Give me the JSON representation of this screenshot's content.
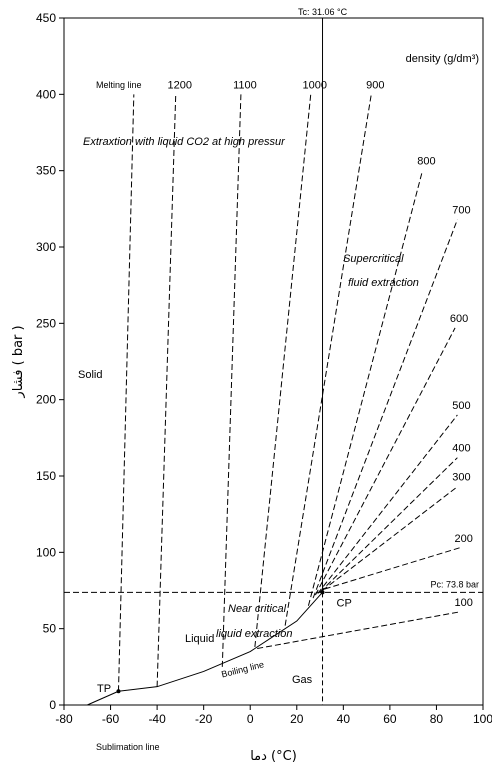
{
  "chart_data": {
    "type": "line",
    "title": "",
    "xlabel": "دما (°C)",
    "ylabel": "فشار ( bar )",
    "xlim": [
      -80,
      100
    ],
    "ylim": [
      0,
      450
    ],
    "x_ticks": [
      -80,
      -60,
      -40,
      -20,
      0,
      20,
      40,
      60,
      80,
      100
    ],
    "y_ticks": [
      0,
      50,
      100,
      150,
      200,
      250,
      300,
      350,
      400,
      450
    ],
    "legend_title": "density (g/dm³)",
    "critical_temperature_label": "Tc: 31.06 °C",
    "critical_temperature": 31.06,
    "critical_pressure_label": "Pc: 73.8 bar",
    "critical_pressure": 73.8,
    "boiling_line": [
      [
        -56.6,
        9
      ],
      [
        -40,
        12
      ],
      [
        -20,
        22
      ],
      [
        0,
        35
      ],
      [
        20,
        55
      ],
      [
        31.06,
        73.8
      ]
    ],
    "melting_line": [
      [
        -56.6,
        9
      ],
      [
        -50,
        400
      ]
    ],
    "isochores": [
      {
        "label": "1200",
        "points": [
          [
            -40,
            12
          ],
          [
            -32,
            400
          ]
        ]
      },
      {
        "label": "1100",
        "points": [
          [
            -12,
            25
          ],
          [
            -4,
            400
          ]
        ]
      },
      {
        "label": "1000",
        "points": [
          [
            2,
            38
          ],
          [
            26,
            400
          ]
        ]
      },
      {
        "label": "900",
        "points": [
          [
            15,
            52
          ],
          [
            52,
            400
          ]
        ]
      },
      {
        "label": "800",
        "points": [
          [
            25,
            65
          ],
          [
            74,
            350
          ]
        ]
      },
      {
        "label": "700",
        "points": [
          [
            27,
            70
          ],
          [
            89,
            318
          ]
        ]
      },
      {
        "label": "600",
        "points": [
          [
            28,
            72
          ],
          [
            88,
            247
          ]
        ]
      },
      {
        "label": "500",
        "points": [
          [
            29,
            73
          ],
          [
            89,
            190
          ]
        ]
      },
      {
        "label": "400",
        "points": [
          [
            30,
            74
          ],
          [
            89,
            162
          ]
        ]
      },
      {
        "label": "300",
        "points": [
          [
            31,
            75
          ],
          [
            89,
            143
          ]
        ]
      },
      {
        "label": "200",
        "points": [
          [
            32,
            76
          ],
          [
            90,
            103
          ]
        ]
      },
      {
        "label": "100",
        "points": [
          [
            3,
            37
          ],
          [
            90,
            61
          ]
        ]
      }
    ],
    "annotations": {
      "melting_line": "Melting line",
      "sublimation_line": "Sublimation line",
      "boiling_line": "Boiling line",
      "solid": "Solid",
      "liquid": "Liquid",
      "gas": "Gas",
      "triple_point": "TP",
      "critical_point": "CP",
      "liquid_high_pressure": "Extraxtion with liquid CO2 at high pressur",
      "supercritical_1": "Supercritical",
      "supercritical_2": "fluid extraction",
      "near_critical_1": "Near critical",
      "near_critical_2": "liquid extraction"
    }
  }
}
